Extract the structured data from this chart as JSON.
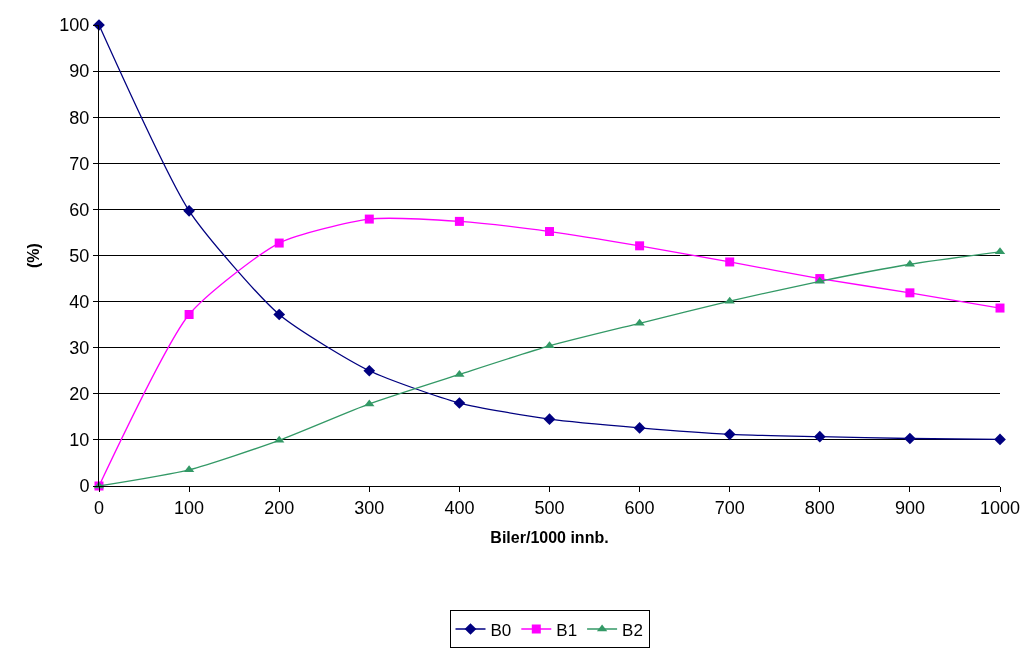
{
  "chart_data": {
    "type": "line",
    "xlabel": "Biler/1000 innb.",
    "ylabel": "(%)",
    "x": [
      0,
      100,
      200,
      300,
      400,
      500,
      600,
      700,
      800,
      900,
      1000
    ],
    "series": [
      {
        "name": "B0",
        "color": "#000080",
        "marker": "diamond",
        "values": [
          100,
          59.7,
          37.2,
          25.0,
          18.0,
          14.5,
          12.6,
          11.2,
          10.7,
          10.3,
          10.1
        ]
      },
      {
        "name": "B1",
        "color": "#ff00ff",
        "marker": "square",
        "values": [
          0,
          37.2,
          52.7,
          57.9,
          57.4,
          55.2,
          52.1,
          48.6,
          45.0,
          41.9,
          38.6
        ]
      },
      {
        "name": "B2",
        "color": "#339966",
        "marker": "triangle",
        "values": [
          0,
          3.5,
          9.9,
          17.8,
          24.2,
          30.4,
          35.3,
          40.1,
          44.4,
          48.1,
          50.8
        ]
      }
    ],
    "xlim": [
      0,
      1000
    ],
    "xticks": [
      0,
      100,
      200,
      300,
      400,
      500,
      600,
      700,
      800,
      900,
      1000
    ],
    "ylim": [
      0,
      100
    ],
    "yticks": [
      0,
      10,
      20,
      30,
      40,
      50,
      60,
      70,
      80,
      90,
      100
    ],
    "grid": "y",
    "legend": "bottom",
    "line_style": "solid"
  }
}
